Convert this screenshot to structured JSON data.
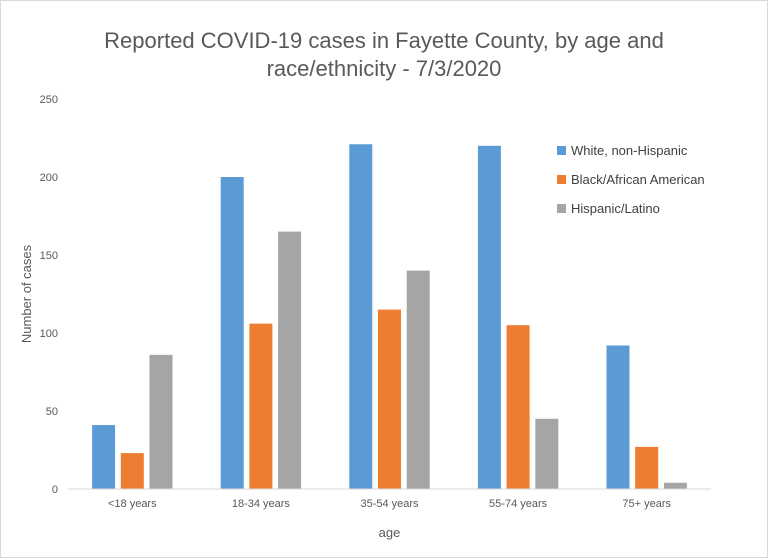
{
  "chart_data": {
    "type": "bar",
    "title_lines": [
      "Reported COVID-19 cases in Fayette County, by age and",
      "race/ethnicity - 7/3/2020"
    ],
    "xlabel": "age",
    "ylabel": "Number of cases",
    "ylim": [
      0,
      250
    ],
    "yticks": [
      0,
      50,
      100,
      150,
      200,
      250
    ],
    "grid": false,
    "legend_position": "right",
    "categories": [
      "<18 years",
      "18-34 years",
      "35-54 years",
      "55-74 years",
      "75+ years"
    ],
    "series": [
      {
        "name": "White, non-Hispanic",
        "color": "#5b9bd5",
        "values": [
          41,
          200,
          221,
          220,
          92
        ]
      },
      {
        "name": "Black/African American",
        "color": "#ed7d31",
        "values": [
          23,
          106,
          115,
          105,
          27
        ]
      },
      {
        "name": "Hispanic/Latino",
        "color": "#a5a5a5",
        "values": [
          86,
          165,
          140,
          45,
          4
        ]
      }
    ]
  }
}
